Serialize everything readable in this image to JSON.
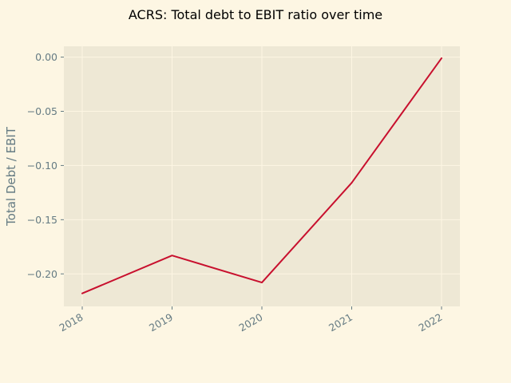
{
  "chart_data": {
    "type": "line",
    "title": "ACRS: Total debt to EBIT ratio over time",
    "xlabel": "",
    "ylabel": "Total Debt / EBIT",
    "x": [
      "2018",
      "2019",
      "2020",
      "2021",
      "2022"
    ],
    "series": [
      {
        "values": [
          -0.218,
          -0.183,
          -0.208,
          -0.116,
          -0.001
        ]
      }
    ],
    "ylim": [
      -0.23,
      0.01
    ],
    "yticks": [
      0.0,
      -0.05,
      -0.1,
      -0.15,
      -0.2
    ],
    "ytick_labels": [
      "0.00",
      "−0.05",
      "−0.10",
      "−0.15",
      "−0.20"
    ],
    "grid": true,
    "legend": "none",
    "colors": {
      "background": "#fdf6e3",
      "plot_area": "#eee8d5",
      "grid": "#fdf6e3",
      "line": "#c8102e",
      "tick_text": "#657b83"
    }
  }
}
